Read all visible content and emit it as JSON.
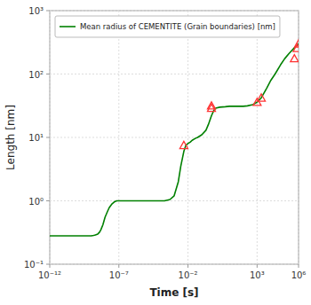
{
  "chart_data": {
    "type": "line",
    "xlabel": "Time [s]",
    "ylabel": "Length [nm]",
    "log": true,
    "grid": true,
    "legend": "upper left",
    "xlim": [
      1e-12,
      1000000.0
    ],
    "ylim": [
      0.1,
      1000.0
    ],
    "xticks": [
      {
        "value": 1e-12,
        "label": "10⁻¹²"
      },
      {
        "value": 1e-07,
        "label": "10⁻⁷"
      },
      {
        "value": 0.01,
        "label": "10⁻²"
      },
      {
        "value": 1000.0,
        "label": "10³"
      },
      {
        "value": 1000000.0,
        "label": "10⁶"
      }
    ],
    "yticks": [
      {
        "value": 0.1,
        "label": "10⁻¹"
      },
      {
        "value": 1.0,
        "label": "10⁰"
      },
      {
        "value": 10.0,
        "label": "10¹"
      },
      {
        "value": 100.0,
        "label": "10²"
      },
      {
        "value": 1000.0,
        "label": "10³"
      }
    ],
    "series": [
      {
        "name": "Mean radius of CEMENTITE (Grain boundaries) [nm]",
        "type": "line",
        "color": "#008000",
        "x": [
          1e-12,
          2e-12,
          5e-12,
          1e-11,
          2e-11,
          5e-11,
          1e-10,
          2e-10,
          5e-10,
          1e-09,
          1.5e-09,
          2e-09,
          3e-09,
          4e-09,
          5e-09,
          7e-09,
          1e-08,
          1.5e-08,
          2e-08,
          3e-08,
          5e-08,
          7e-08,
          1e-07,
          1.5e-07,
          2e-07,
          3e-07,
          4e-07,
          5e-07,
          6e-07,
          7e-07,
          8e-07,
          9e-07,
          1e-06,
          1.5e-06,
          2e-06,
          3e-06,
          5e-06,
          7e-06,
          1e-05,
          2e-05,
          5e-05,
          0.0001,
          0.0002,
          0.0005,
          0.001,
          0.002,
          0.003,
          0.005,
          0.007,
          0.01,
          0.015,
          0.02,
          0.03,
          0.04,
          0.05,
          0.07,
          0.1,
          0.2,
          0.3,
          0.5,
          0.7,
          1.0,
          2.0,
          5.0,
          10.0,
          20.0,
          50.0,
          100.0,
          200.0,
          500.0,
          1000.0,
          2000.0,
          5000.0,
          10000.0,
          20000.0,
          50000.0,
          100000.0,
          200000.0,
          500000.0,
          1000000.0
        ],
        "values": [
          0.28,
          0.28,
          0.28,
          0.28,
          0.28,
          0.28,
          0.28,
          0.28,
          0.28,
          0.28,
          0.285,
          0.29,
          0.3,
          0.32,
          0.35,
          0.42,
          0.55,
          0.68,
          0.78,
          0.88,
          0.97,
          1.0,
          1.0,
          1.0,
          1.0,
          1.0,
          1.0,
          1.0,
          1.0,
          1.0,
          1.0,
          1.0,
          1.0,
          1.0,
          1.0,
          1.0,
          1.0,
          1.0,
          1.0,
          1.0,
          1.0,
          1.0,
          1.0,
          1.05,
          1.2,
          2.0,
          3.5,
          6.0,
          7.5,
          8.0,
          8.5,
          9.0,
          9.5,
          9.8,
          10.0,
          10.5,
          11.0,
          13.0,
          16.0,
          22.0,
          26.0,
          29.0,
          30.0,
          30.5,
          31.0,
          31.0,
          31.0,
          31.0,
          31.5,
          33.0,
          36.0,
          42.0,
          60.0,
          80.0,
          100.0,
          140.0,
          175.0,
          210.0,
          260.0,
          300.0
        ]
      },
      {
        "type": "scatter",
        "color": "#ff3333",
        "marker": "triangle",
        "x": [
          0.005,
          0.5,
          0.5,
          1000.0,
          2000.0,
          500000.0,
          800000.0,
          1000000.0
        ],
        "values": [
          7.5,
          29.0,
          31.5,
          36.0,
          42.0,
          175.0,
          255.0,
          300.0
        ]
      }
    ]
  }
}
